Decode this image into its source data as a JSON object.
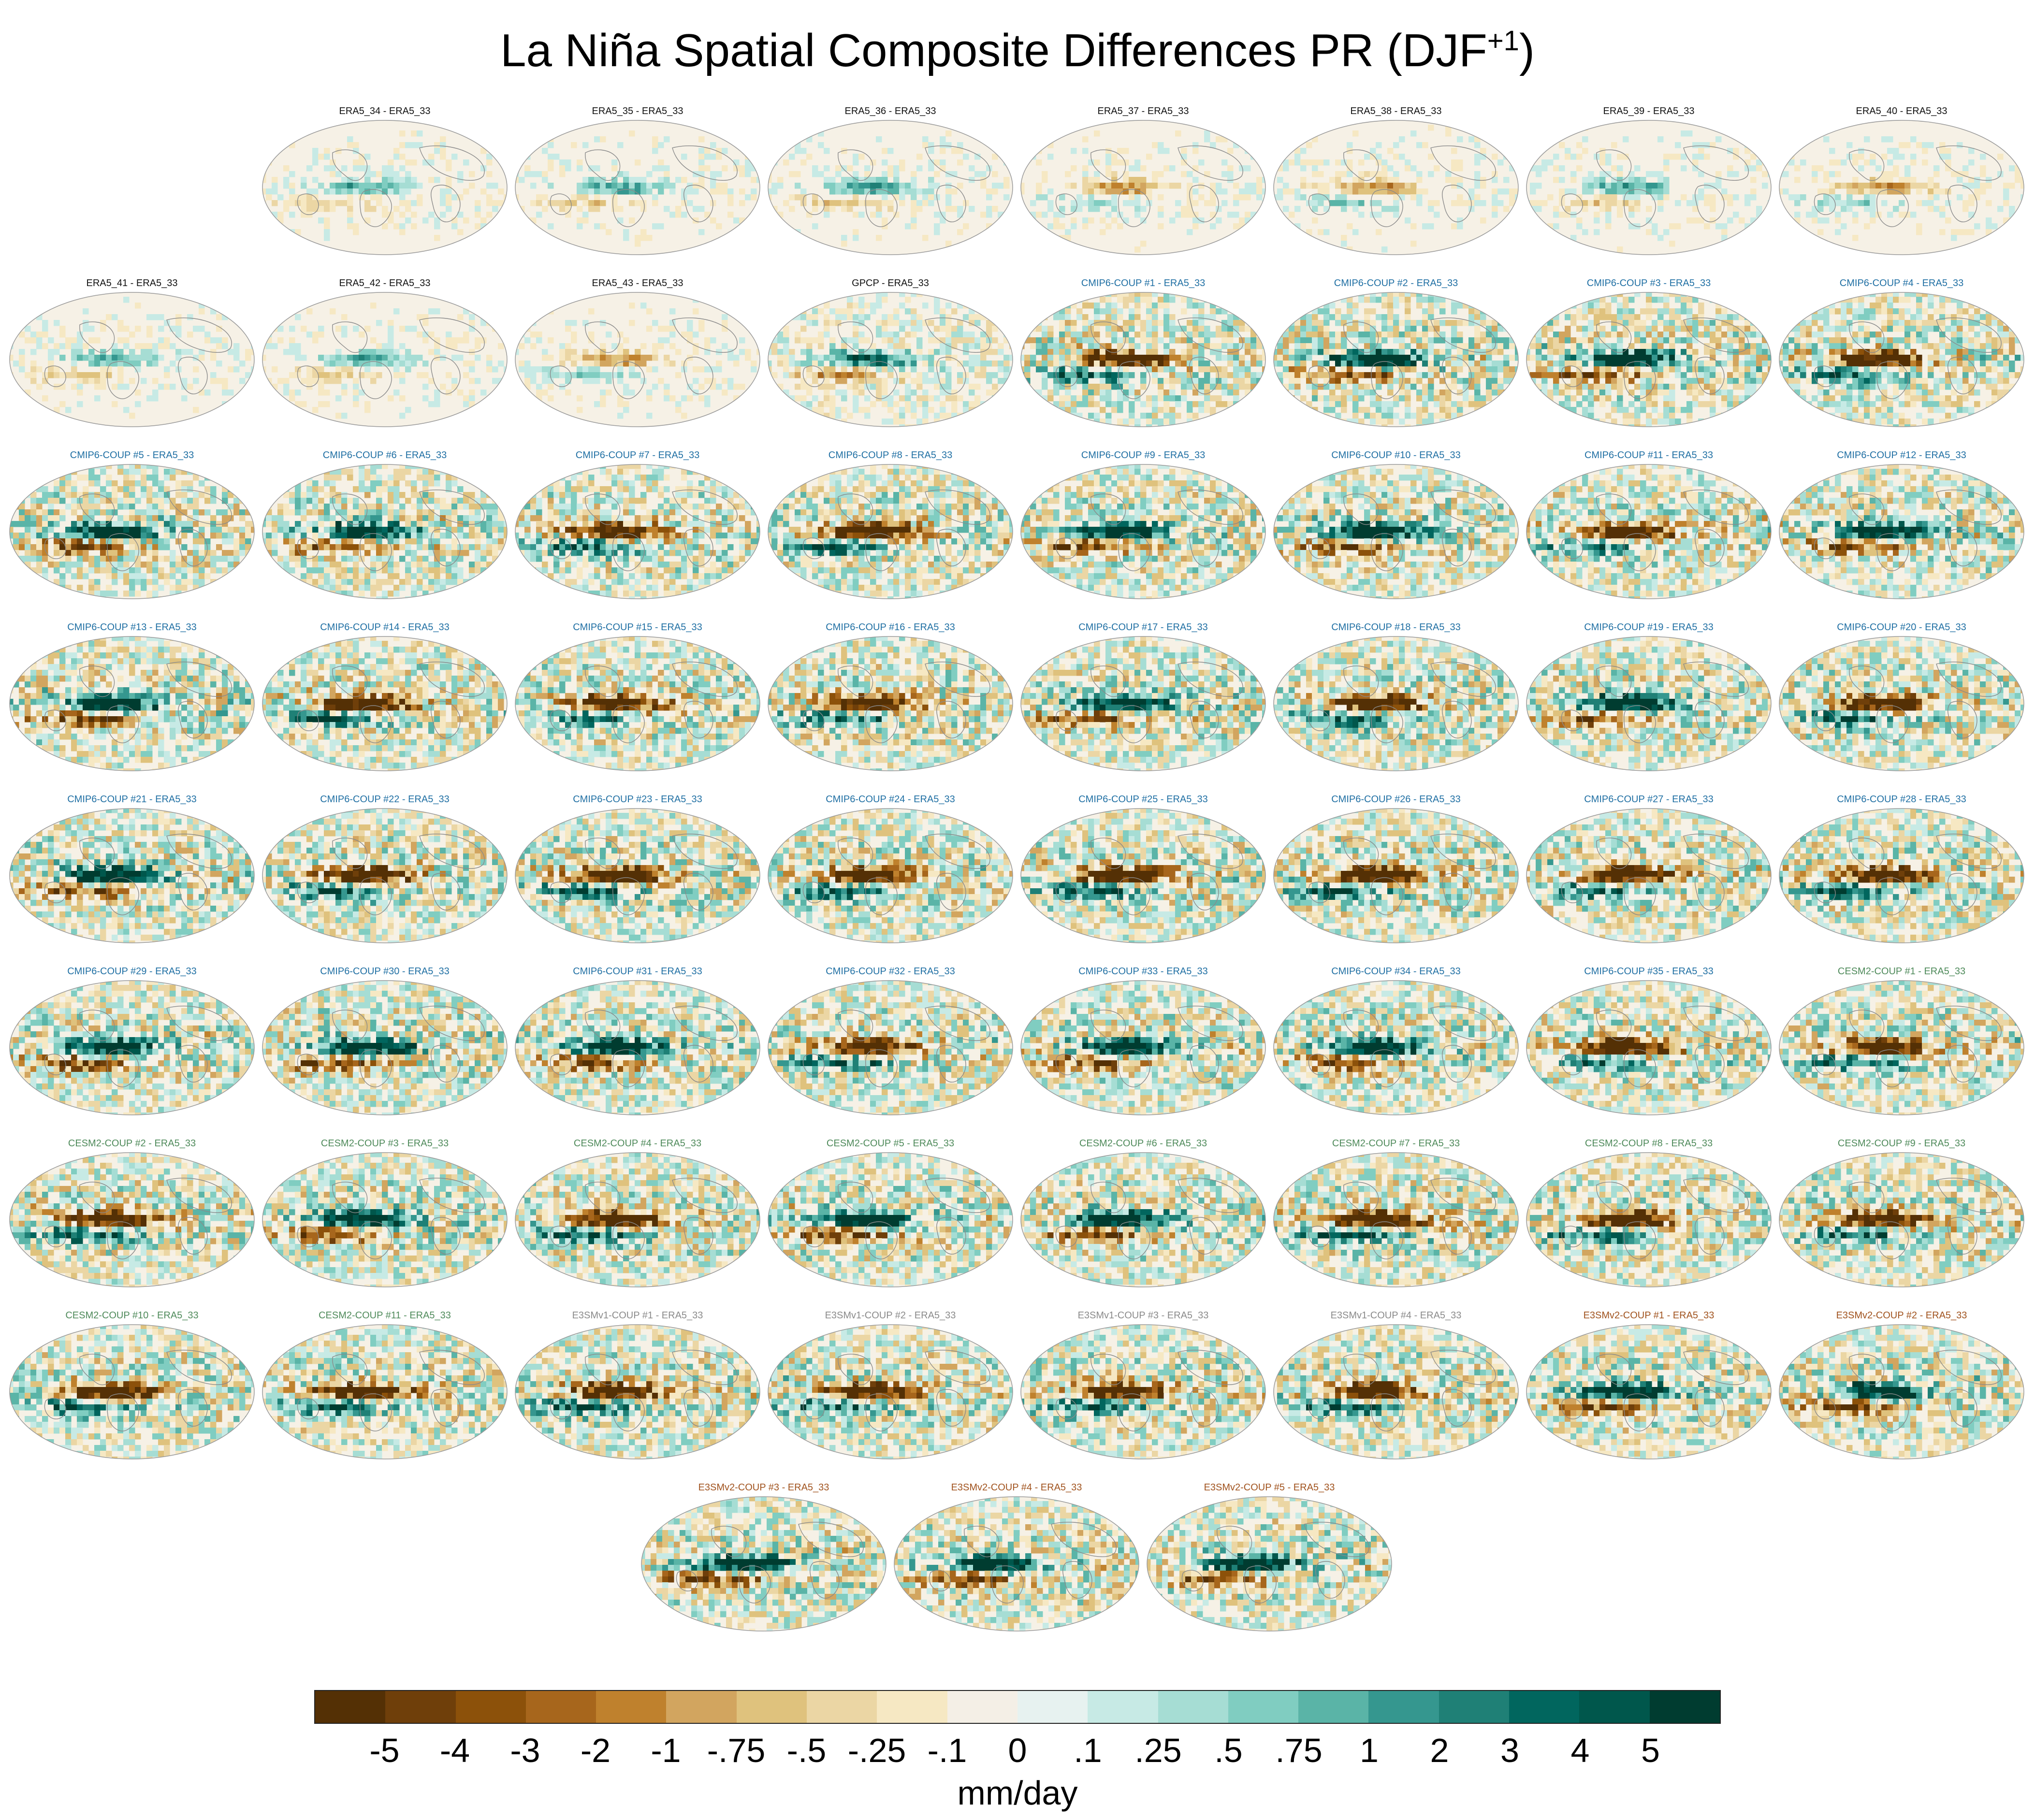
{
  "figure": {
    "title_main": "La Niña Spatial Composite Differences PR (DJF",
    "title_sup": "+1",
    "title_end": ")"
  },
  "panels": [
    {
      "label": "ERA5_34 - ERA5_33",
      "group": "era5"
    },
    {
      "label": "ERA5_35 - ERA5_33",
      "group": "era5"
    },
    {
      "label": "ERA5_36 - ERA5_33",
      "group": "era5"
    },
    {
      "label": "ERA5_37 - ERA5_33",
      "group": "era5"
    },
    {
      "label": "ERA5_38 - ERA5_33",
      "group": "era5"
    },
    {
      "label": "ERA5_39 - ERA5_33",
      "group": "era5"
    },
    {
      "label": "ERA5_40 - ERA5_33",
      "group": "era5"
    },
    {
      "label": "ERA5_41 - ERA5_33",
      "group": "era5"
    },
    {
      "label": "ERA5_42 - ERA5_33",
      "group": "era5"
    },
    {
      "label": "ERA5_43 - ERA5_33",
      "group": "era5"
    },
    {
      "label": "GPCP - ERA5_33",
      "group": "gpcp"
    },
    {
      "label": "CMIP6-COUP #1 - ERA5_33",
      "group": "cmip6"
    },
    {
      "label": "CMIP6-COUP #2 - ERA5_33",
      "group": "cmip6"
    },
    {
      "label": "CMIP6-COUP #3 - ERA5_33",
      "group": "cmip6"
    },
    {
      "label": "CMIP6-COUP #4 - ERA5_33",
      "group": "cmip6"
    },
    {
      "label": "CMIP6-COUP #5 - ERA5_33",
      "group": "cmip6"
    },
    {
      "label": "CMIP6-COUP #6 - ERA5_33",
      "group": "cmip6"
    },
    {
      "label": "CMIP6-COUP #7 - ERA5_33",
      "group": "cmip6"
    },
    {
      "label": "CMIP6-COUP #8 - ERA5_33",
      "group": "cmip6"
    },
    {
      "label": "CMIP6-COUP #9 - ERA5_33",
      "group": "cmip6"
    },
    {
      "label": "CMIP6-COUP #10 - ERA5_33",
      "group": "cmip6"
    },
    {
      "label": "CMIP6-COUP #11 - ERA5_33",
      "group": "cmip6"
    },
    {
      "label": "CMIP6-COUP #12 - ERA5_33",
      "group": "cmip6"
    },
    {
      "label": "CMIP6-COUP #13 - ERA5_33",
      "group": "cmip6"
    },
    {
      "label": "CMIP6-COUP #14 - ERA5_33",
      "group": "cmip6"
    },
    {
      "label": "CMIP6-COUP #15 - ERA5_33",
      "group": "cmip6"
    },
    {
      "label": "CMIP6-COUP #16 - ERA5_33",
      "group": "cmip6"
    },
    {
      "label": "CMIP6-COUP #17 - ERA5_33",
      "group": "cmip6"
    },
    {
      "label": "CMIP6-COUP #18 - ERA5_33",
      "group": "cmip6"
    },
    {
      "label": "CMIP6-COUP #19 - ERA5_33",
      "group": "cmip6"
    },
    {
      "label": "CMIP6-COUP #20 - ERA5_33",
      "group": "cmip6"
    },
    {
      "label": "CMIP6-COUP #21 - ERA5_33",
      "group": "cmip6"
    },
    {
      "label": "CMIP6-COUP #22 - ERA5_33",
      "group": "cmip6"
    },
    {
      "label": "CMIP6-COUP #23 - ERA5_33",
      "group": "cmip6"
    },
    {
      "label": "CMIP6-COUP #24 - ERA5_33",
      "group": "cmip6"
    },
    {
      "label": "CMIP6-COUP #25 - ERA5_33",
      "group": "cmip6"
    },
    {
      "label": "CMIP6-COUP #26 - ERA5_33",
      "group": "cmip6"
    },
    {
      "label": "CMIP6-COUP #27 - ERA5_33",
      "group": "cmip6"
    },
    {
      "label": "CMIP6-COUP #28 - ERA5_33",
      "group": "cmip6"
    },
    {
      "label": "CMIP6-COUP #29 - ERA5_33",
      "group": "cmip6"
    },
    {
      "label": "CMIP6-COUP #30 - ERA5_33",
      "group": "cmip6"
    },
    {
      "label": "CMIP6-COUP #31 - ERA5_33",
      "group": "cmip6"
    },
    {
      "label": "CMIP6-COUP #32 - ERA5_33",
      "group": "cmip6"
    },
    {
      "label": "CMIP6-COUP #33 - ERA5_33",
      "group": "cmip6"
    },
    {
      "label": "CMIP6-COUP #34 - ERA5_33",
      "group": "cmip6"
    },
    {
      "label": "CMIP6-COUP #35 - ERA5_33",
      "group": "cmip6"
    },
    {
      "label": "CESM2-COUP #1 - ERA5_33",
      "group": "cesm2"
    },
    {
      "label": "CESM2-COUP #2 - ERA5_33",
      "group": "cesm2"
    },
    {
      "label": "CESM2-COUP #3 - ERA5_33",
      "group": "cesm2"
    },
    {
      "label": "CESM2-COUP #4 - ERA5_33",
      "group": "cesm2"
    },
    {
      "label": "CESM2-COUP #5 - ERA5_33",
      "group": "cesm2"
    },
    {
      "label": "CESM2-COUP #6 - ERA5_33",
      "group": "cesm2"
    },
    {
      "label": "CESM2-COUP #7 - ERA5_33",
      "group": "cesm2"
    },
    {
      "label": "CESM2-COUP #8 - ERA5_33",
      "group": "cesm2"
    },
    {
      "label": "CESM2-COUP #9 - ERA5_33",
      "group": "cesm2"
    },
    {
      "label": "CESM2-COUP #10 - ERA5_33",
      "group": "cesm2"
    },
    {
      "label": "CESM2-COUP #11 - ERA5_33",
      "group": "cesm2"
    },
    {
      "label": "E3SMv1-COUP #1 - ERA5_33",
      "group": "e3smv1"
    },
    {
      "label": "E3SMv1-COUP #2 - ERA5_33",
      "group": "e3smv1"
    },
    {
      "label": "E3SMv1-COUP #3 - ERA5_33",
      "group": "e3smv1"
    },
    {
      "label": "E3SMv1-COUP #4 - ERA5_33",
      "group": "e3smv1"
    },
    {
      "label": "E3SMv2-COUP #1 - ERA5_33",
      "group": "e3smv2"
    },
    {
      "label": "E3SMv2-COUP #2 - ERA5_33",
      "group": "e3smv2"
    },
    {
      "label": "E3SMv2-COUP #3 - ERA5_33",
      "group": "e3smv2"
    },
    {
      "label": "E3SMv2-COUP #4 - ERA5_33",
      "group": "e3smv2"
    },
    {
      "label": "E3SMv2-COUP #5 - ERA5_33",
      "group": "e3smv2"
    }
  ],
  "colorbar": {
    "units": "mm/day",
    "colors": [
      "#543005",
      "#6f3f0a",
      "#8c510a",
      "#a7661c",
      "#bf812d",
      "#d2a55f",
      "#dfc27d",
      "#ebd6a4",
      "#f6e8c3",
      "#f4efe6",
      "#e7f2f0",
      "#c7eae5",
      "#a6ddd4",
      "#80cdc1",
      "#5ab4a7",
      "#35978f",
      "#1f8076",
      "#01665e",
      "#00574c",
      "#003c30"
    ],
    "ticks": [
      "-5",
      "-4",
      "-3",
      "-2",
      "-1",
      "-.75",
      "-.5",
      "-.25",
      "-.1",
      "0",
      ".1",
      ".25",
      ".5",
      ".75",
      "1",
      "2",
      "3",
      "4",
      "5"
    ]
  }
}
